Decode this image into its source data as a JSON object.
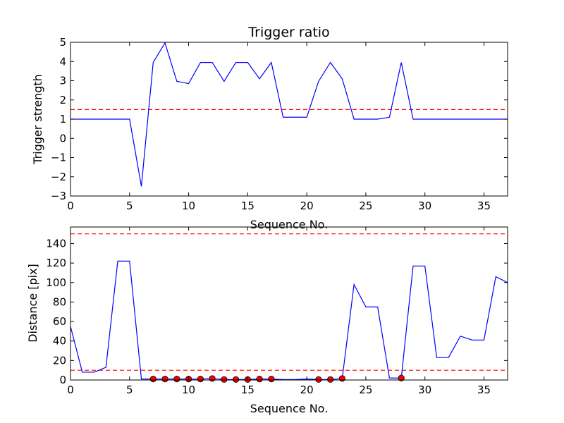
{
  "chart_data": [
    {
      "type": "line",
      "title": "Trigger ratio",
      "xlabel": "Sequence No.",
      "ylabel": "Trigger strength",
      "xlim": [
        0,
        37
      ],
      "ylim": [
        -3,
        5
      ],
      "xticks": [
        0,
        5,
        10,
        15,
        20,
        25,
        30,
        35
      ],
      "yticks": [
        -3,
        -2,
        -1,
        0,
        1,
        2,
        3,
        4,
        5
      ],
      "ytick_labels": [
        "−3",
        "−2",
        "−1",
        "0",
        "1",
        "2",
        "3",
        "4",
        "5"
      ],
      "grid": false,
      "colors": {
        "line": "#0000ff",
        "threshold": "#ff0000"
      },
      "series": [
        {
          "x": [
            0,
            1,
            2,
            3,
            4,
            5,
            6,
            7,
            8,
            9,
            10,
            11,
            12,
            13,
            14,
            15,
            16,
            17,
            18,
            19,
            20,
            21,
            22,
            23,
            24,
            25,
            26,
            27,
            28,
            29,
            30,
            31,
            32,
            33,
            34,
            35,
            36,
            37
          ],
          "values": [
            1,
            1,
            1,
            1,
            1,
            1,
            -2.5,
            3.95,
            4.97,
            2.97,
            2.85,
            3.95,
            3.95,
            2.97,
            3.95,
            3.95,
            3.1,
            3.95,
            1.1,
            1.1,
            1.1,
            2.97,
            3.95,
            3.1,
            1,
            1,
            1,
            1.1,
            3.95,
            1,
            1,
            1,
            1,
            1,
            1,
            1,
            1,
            1
          ]
        }
      ],
      "hlines": [
        1.5
      ]
    },
    {
      "type": "line",
      "title": "",
      "xlabel": "Sequence No.",
      "ylabel": "Distance [pix]",
      "xlim": [
        0,
        37
      ],
      "ylim": [
        0,
        157
      ],
      "xticks": [
        0,
        5,
        10,
        15,
        20,
        25,
        30,
        35
      ],
      "yticks": [
        0,
        20,
        40,
        60,
        80,
        100,
        120,
        140
      ],
      "ytick_labels": [
        "0",
        "20",
        "40",
        "60",
        "80",
        "100",
        "120",
        "140"
      ],
      "grid": false,
      "colors": {
        "line": "#0000ff",
        "threshold": "#ff0000",
        "marker": "#ff0000"
      },
      "series": [
        {
          "x": [
            0,
            1,
            2,
            3,
            4,
            5,
            6,
            7,
            8,
            9,
            10,
            11,
            12,
            13,
            14,
            15,
            16,
            17,
            18,
            19,
            20,
            21,
            22,
            23,
            24,
            25,
            26,
            27,
            28,
            29,
            30,
            31,
            32,
            33,
            34,
            35,
            36,
            37
          ],
          "values": [
            55,
            8,
            8,
            13,
            122,
            122,
            1,
            1,
            1,
            1,
            1,
            1,
            1.5,
            0.5,
            0.5,
            0.5,
            1,
            1,
            0.5,
            0.5,
            1,
            0.5,
            0.5,
            1.5,
            98,
            75,
            75,
            2,
            2,
            117,
            117,
            23,
            23,
            45,
            41,
            41,
            106,
            100
          ]
        }
      ],
      "markers": {
        "x": [
          7,
          8,
          9,
          10,
          11,
          12,
          13,
          14,
          15,
          16,
          17,
          21,
          22,
          23,
          28
        ],
        "values": [
          1,
          1,
          1,
          1,
          1,
          1.5,
          0.5,
          0.5,
          0.5,
          1,
          1,
          0.5,
          0.5,
          1.5,
          2
        ]
      },
      "hlines": [
        10,
        150
      ]
    }
  ]
}
